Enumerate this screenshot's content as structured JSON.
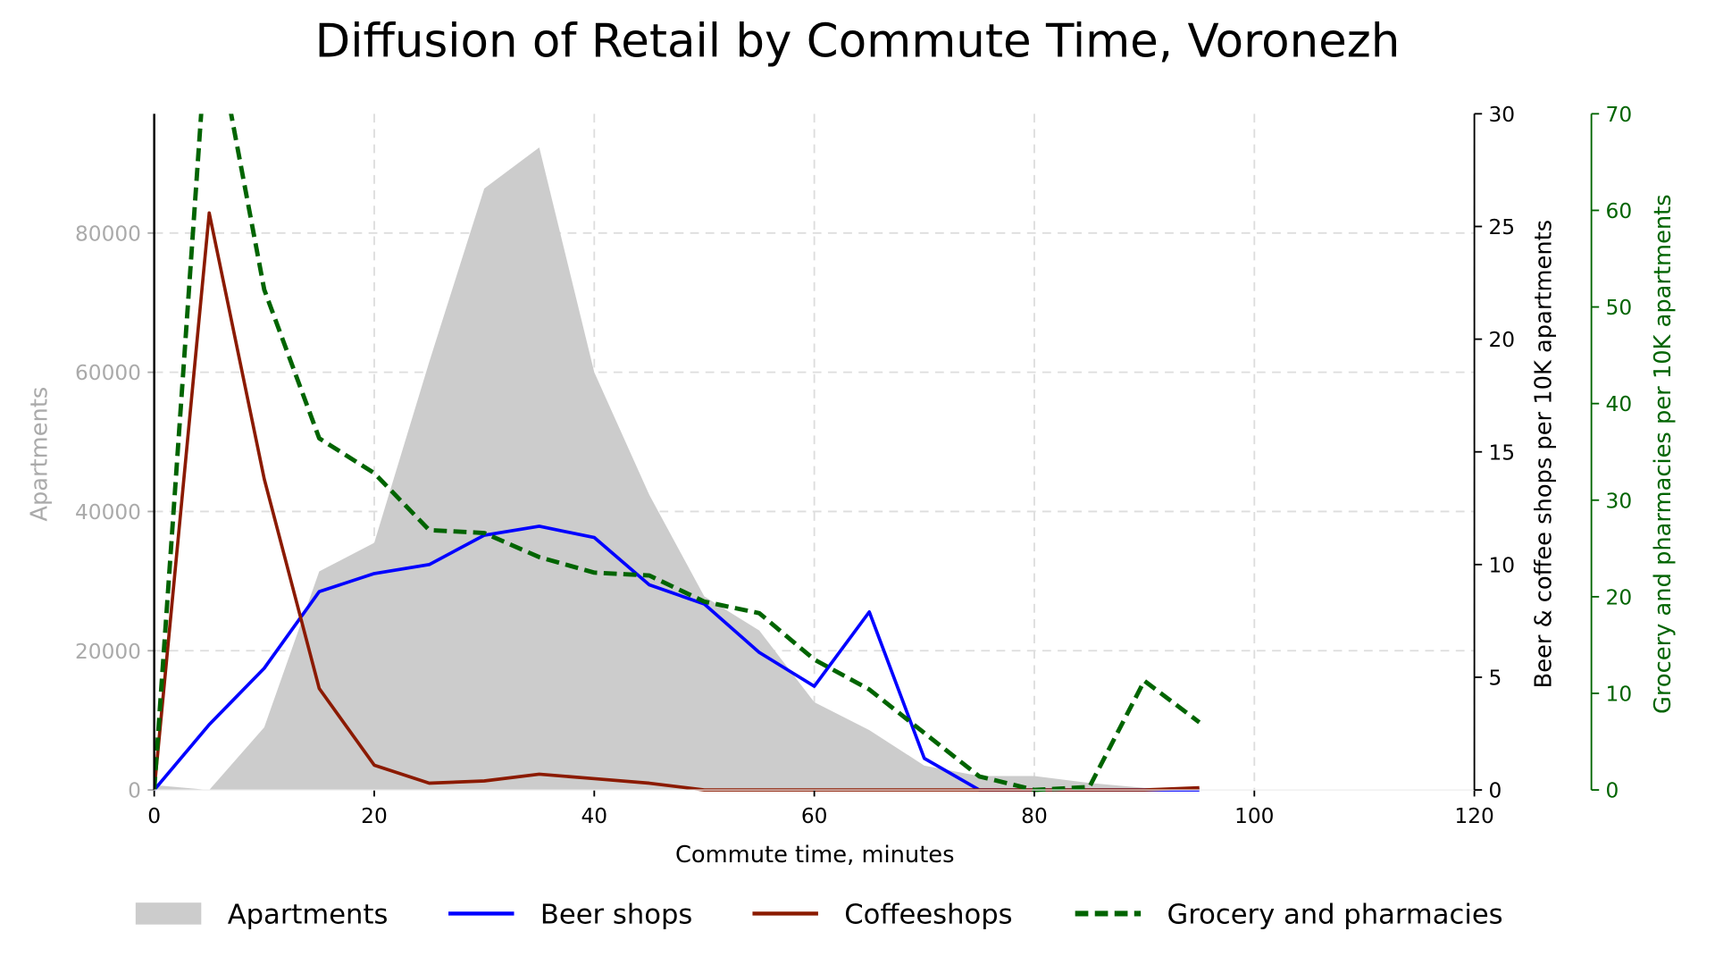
{
  "chart_data": {
    "type": "line",
    "title": "Diffusion of Retail by Commute Time, Voronezh",
    "xlabel": "Commute time, minutes",
    "ylabel_left": "Apartments",
    "ylabel_right": "Beer & coffee shops per 10K apartments",
    "ylabel_right2": "Grocery and pharmacies per 10K apartments",
    "xlim": [
      0,
      120
    ],
    "ylim_left": [
      0,
      96000
    ],
    "ylim_right": [
      0,
      30
    ],
    "ylim_right2": [
      0,
      70
    ],
    "xticks": [
      "0",
      "20",
      "40",
      "60",
      "80",
      "100",
      "120"
    ],
    "yticks_left": [
      "0",
      "20000",
      "40000",
      "60000",
      "80000"
    ],
    "yticks_right": [
      "0",
      "5",
      "10",
      "15",
      "20",
      "25",
      "30"
    ],
    "yticks_right2": [
      "0",
      "10",
      "20",
      "30",
      "40",
      "50",
      "60",
      "70"
    ],
    "grid": true,
    "legend_position": "bottom",
    "x": [
      0,
      5,
      10,
      15,
      20,
      25,
      30,
      35,
      40,
      45,
      50,
      55,
      60,
      65,
      70,
      75,
      80,
      85,
      90,
      95
    ],
    "series": [
      {
        "name": "Apartments",
        "kind": "area",
        "axis": "left",
        "color": "#cccccc",
        "values": [
          700,
          0,
          9000,
          31400,
          35500,
          61500,
          86400,
          92300,
          60000,
          42400,
          27800,
          22900,
          12600,
          8600,
          3500,
          2000,
          2000,
          1000,
          300,
          300
        ]
      },
      {
        "name": "Beer shops",
        "kind": "line",
        "axis": "right",
        "color": "#0000ff",
        "values": [
          0,
          2.9,
          5.4,
          8.8,
          9.6,
          10.0,
          11.3,
          11.7,
          11.2,
          9.1,
          8.25,
          6.1,
          4.6,
          7.9,
          1.4,
          0,
          0,
          0,
          0,
          0
        ]
      },
      {
        "name": "Coffeeshops",
        "kind": "line",
        "axis": "right",
        "color": "#8b1a00",
        "values": [
          0,
          25.6,
          13.8,
          4.5,
          1.1,
          0.3,
          0.4,
          0.7,
          0.5,
          0.3,
          0,
          0,
          0,
          0,
          0,
          0,
          0,
          0,
          0,
          0.1
        ]
      },
      {
        "name": "Grocery and pharmacies",
        "kind": "dashed",
        "axis": "right2",
        "color": "#006400",
        "values": [
          0,
          82,
          51.8,
          36.4,
          32.8,
          26.9,
          26.6,
          24.1,
          22.5,
          22.2,
          19.5,
          18.3,
          13.5,
          10.4,
          5.9,
          1.4,
          0,
          0.3,
          11.3,
          7.0
        ]
      }
    ]
  }
}
